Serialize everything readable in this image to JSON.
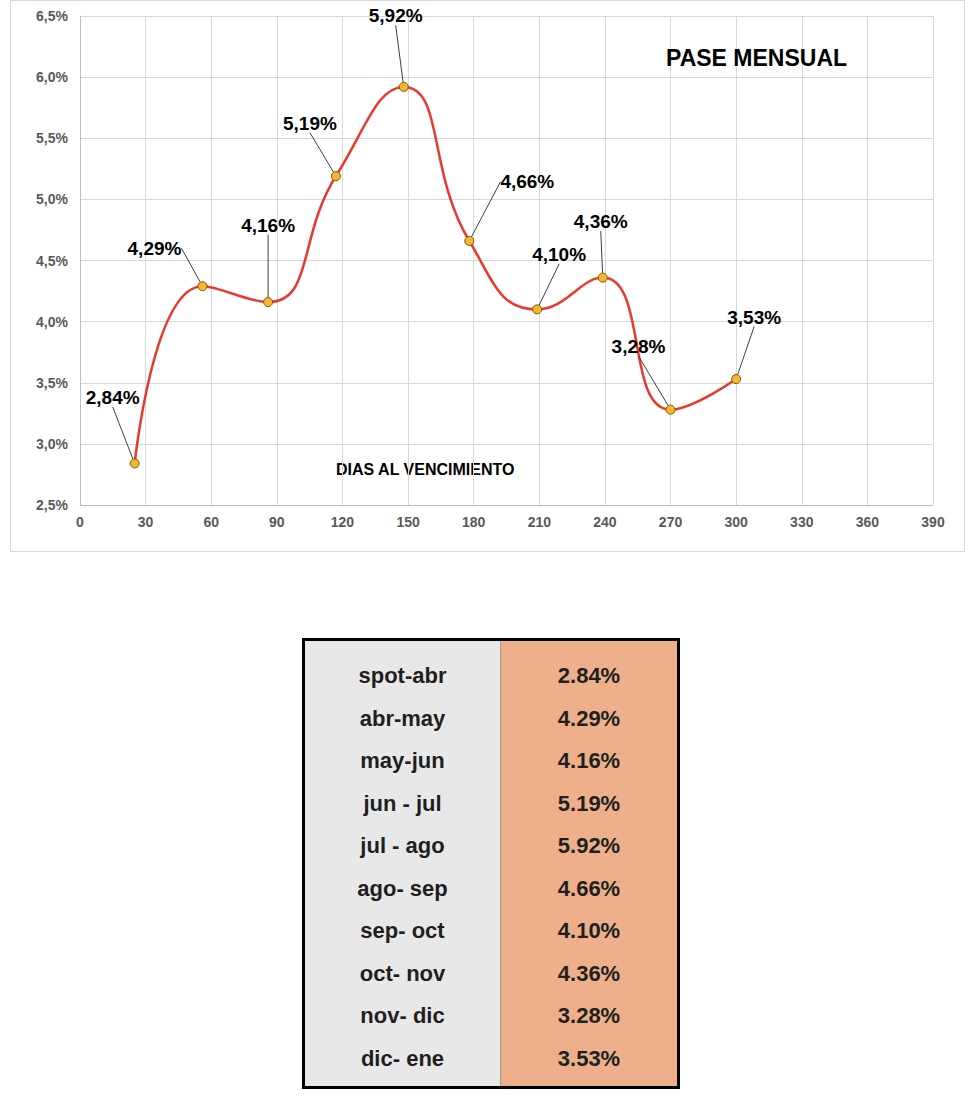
{
  "chart_data": {
    "type": "line",
    "title": "PASE MENSUAL",
    "x_label": "DIAS AL VENCIMIENTO",
    "x": [
      25,
      56,
      86,
      117,
      148,
      178,
      209,
      239,
      270,
      300
    ],
    "values": [
      2.84,
      4.29,
      4.16,
      5.19,
      5.92,
      4.66,
      4.1,
      4.36,
      3.28,
      3.53
    ],
    "value_labels": [
      "2,84%",
      "4,29%",
      "4,16%",
      "5,19%",
      "5,92%",
      "4,66%",
      "4,10%",
      "4,36%",
      "3,28%",
      "3,53%"
    ],
    "color": "#e8392c",
    "marker": "circle",
    "line_style": "solid",
    "data_labels": true,
    "grid": true,
    "xlim": [
      0,
      390
    ],
    "xticks": [
      0,
      30,
      60,
      90,
      120,
      150,
      180,
      210,
      240,
      270,
      300,
      330,
      360,
      390
    ],
    "ylim": [
      2.5,
      6.5
    ],
    "yticks": [
      {
        "value": 2.5,
        "label": "2,5%"
      },
      {
        "value": 3.0,
        "label": "3,0%"
      },
      {
        "value": 3.5,
        "label": "3,5%"
      },
      {
        "value": 4.0,
        "label": "4,0%"
      },
      {
        "value": 4.5,
        "label": "4,5%"
      },
      {
        "value": 5.0,
        "label": "5,0%"
      },
      {
        "value": 5.5,
        "label": "5,5%"
      },
      {
        "value": 6.0,
        "label": "6,0%"
      },
      {
        "value": 6.5,
        "label": "6,5%"
      }
    ]
  },
  "table": {
    "rows": [
      [
        "spot-abr",
        "2.84%"
      ],
      [
        "abr-may",
        "4.29%"
      ],
      [
        "may-jun",
        "4.16%"
      ],
      [
        "jun - jul",
        "5.19%"
      ],
      [
        "jul - ago",
        "5.92%"
      ],
      [
        "ago- sep",
        "4.66%"
      ],
      [
        "sep- oct",
        "4.10%"
      ],
      [
        "oct- nov",
        "4.36%"
      ],
      [
        "nov- dic",
        "3.28%"
      ],
      [
        "dic- ene",
        "3.53%"
      ]
    ]
  }
}
